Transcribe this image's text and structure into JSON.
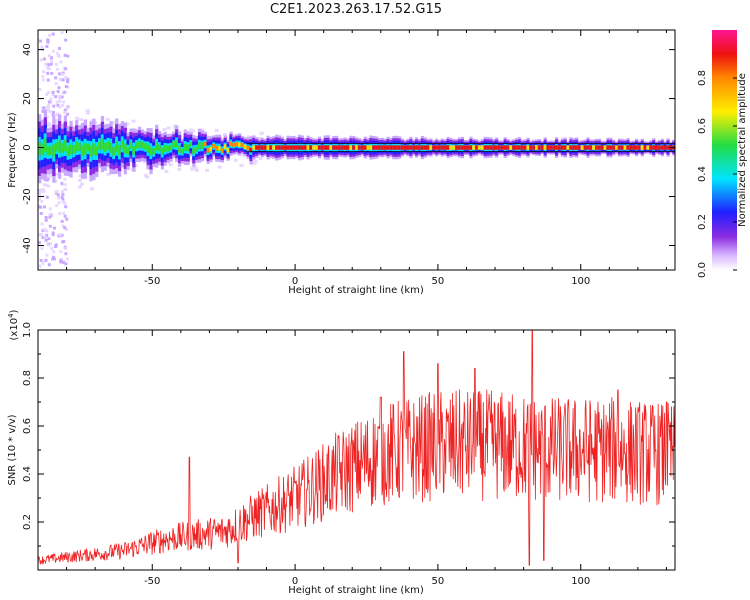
{
  "title": "C2E1.2023.263.17.52.G15",
  "chart_data": [
    {
      "type": "heatmap",
      "xlabel": "Height of straight line (km)",
      "ylabel": "Frequency (Hz)",
      "xlim": [
        -90,
        133
      ],
      "ylim": [
        -50,
        48
      ],
      "xticks": [
        -50,
        0,
        50,
        100
      ],
      "yticks": [
        -40,
        -20,
        0,
        20,
        40
      ],
      "grid": false,
      "colorbar": {
        "label": "Normalized spectral amplitude",
        "range": [
          0,
          1
        ],
        "ticks": [
          0.0,
          0.2,
          0.4,
          0.6,
          0.8
        ],
        "tick_labels": [
          "0.0",
          "0.2",
          "0.4",
          "0.6",
          "0.8"
        ]
      },
      "center_line_frequency": 0,
      "spread_profile": [
        {
          "x": -90,
          "half_width": 8
        },
        {
          "x": -60,
          "half_width": 6
        },
        {
          "x": -40,
          "half_width": 4
        },
        {
          "x": -17,
          "half_width": 3
        },
        {
          "x": 133,
          "half_width": 2
        }
      ],
      "colors": [
        "#e8d8ff",
        "#c9a8ff",
        "#8a2be2",
        "#1f1fff",
        "#00e5ff",
        "#33dd33",
        "#ffe000",
        "#ff8800",
        "#ee1111",
        "#ff1493"
      ]
    },
    {
      "type": "line",
      "xlabel": "Height of straight line (km)",
      "ylabel": "SNR (10 * v/v)",
      "y_scale_label": "(x10",
      "y_scale_exponent": "4",
      "y_scale_suffix": ")",
      "xlim": [
        -90,
        133
      ],
      "ylim": [
        0,
        1.0
      ],
      "xticks": [
        -50,
        0,
        50,
        100
      ],
      "yticks": [
        0.2,
        0.4,
        0.6,
        0.8,
        1.0
      ],
      "ytick_labels": [
        "0.2",
        "0.4",
        "0.6",
        "0.8",
        "1.0"
      ],
      "grid": false,
      "series": [
        {
          "color": "#ee2222",
          "trend": [
            {
              "x": -90,
              "y": 0.04
            },
            {
              "x": -60,
              "y": 0.08
            },
            {
              "x": -45,
              "y": 0.13
            },
            {
              "x": -25,
              "y": 0.16
            },
            {
              "x": -15,
              "y": 0.22
            },
            {
              "x": 0,
              "y": 0.3
            },
            {
              "x": 15,
              "y": 0.4
            },
            {
              "x": 30,
              "y": 0.48
            },
            {
              "x": 50,
              "y": 0.52
            },
            {
              "x": 70,
              "y": 0.52
            },
            {
              "x": 90,
              "y": 0.5
            },
            {
              "x": 110,
              "y": 0.5
            },
            {
              "x": 133,
              "y": 0.48
            }
          ],
          "peaks": [
            {
              "x": -37,
              "y": 0.47
            },
            {
              "x": 30,
              "y": 0.72
            },
            {
              "x": 38,
              "y": 0.91
            },
            {
              "x": 50,
              "y": 0.86
            },
            {
              "x": 63,
              "y": 0.84
            },
            {
              "x": 83,
              "y": 1.0
            },
            {
              "x": 113,
              "y": 0.75
            },
            {
              "x": 130,
              "y": 0.7
            }
          ],
          "dips": [
            {
              "x": -20,
              "y": 0.03
            },
            {
              "x": 82,
              "y": 0.02
            },
            {
              "x": 87,
              "y": 0.04
            }
          ]
        }
      ]
    }
  ]
}
